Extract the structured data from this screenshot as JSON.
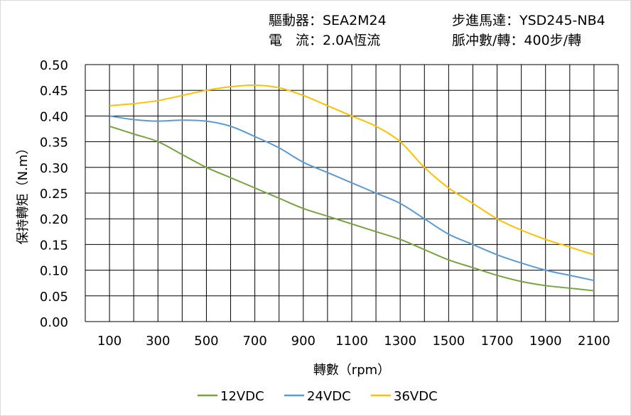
{
  "header": {
    "driver": "驅動器：SEA2M24",
    "current": "電　流：2.0A恆流",
    "motor": "步進馬達：YSD245-NB4",
    "pulses": "脈冲數/轉：400步/轉"
  },
  "chart_data": {
    "type": "line",
    "xlabel": "轉數（rpm）",
    "ylabel": "保持轉矩（N.m）",
    "xlim": [
      0,
      2200
    ],
    "ylim": [
      0,
      0.5
    ],
    "xticks": [
      "100",
      "300",
      "500",
      "700",
      "900",
      "1100",
      "1300",
      "1500",
      "1700",
      "1900",
      "2100"
    ],
    "yticks": [
      "0.00",
      "0.05",
      "0.10",
      "0.15",
      "0.20",
      "0.25",
      "0.30",
      "0.35",
      "0.40",
      "0.45",
      "0.50"
    ],
    "grid": true,
    "legend_position": "bottom",
    "x": [
      100,
      200,
      300,
      400,
      500,
      600,
      700,
      800,
      900,
      1000,
      1100,
      1200,
      1300,
      1400,
      1500,
      1600,
      1700,
      1800,
      1900,
      2000,
      2100
    ],
    "series": [
      {
        "name": "12VDC",
        "color": "#77a43f",
        "values": [
          0.38,
          0.365,
          0.35,
          0.325,
          0.3,
          0.28,
          0.26,
          0.24,
          0.22,
          0.205,
          0.19,
          0.175,
          0.16,
          0.14,
          0.12,
          0.105,
          0.09,
          0.078,
          0.07,
          0.065,
          0.06
        ]
      },
      {
        "name": "24VDC",
        "color": "#5b9bd5",
        "values": [
          0.4,
          0.393,
          0.39,
          0.392,
          0.39,
          0.38,
          0.36,
          0.338,
          0.31,
          0.29,
          0.27,
          0.25,
          0.23,
          0.2,
          0.17,
          0.15,
          0.13,
          0.114,
          0.1,
          0.09,
          0.08
        ]
      },
      {
        "name": "36VDC",
        "color": "#ffc000",
        "values": [
          0.42,
          0.424,
          0.43,
          0.44,
          0.45,
          0.457,
          0.46,
          0.455,
          0.44,
          0.42,
          0.4,
          0.38,
          0.35,
          0.3,
          0.26,
          0.23,
          0.2,
          0.178,
          0.16,
          0.145,
          0.13
        ]
      }
    ]
  }
}
